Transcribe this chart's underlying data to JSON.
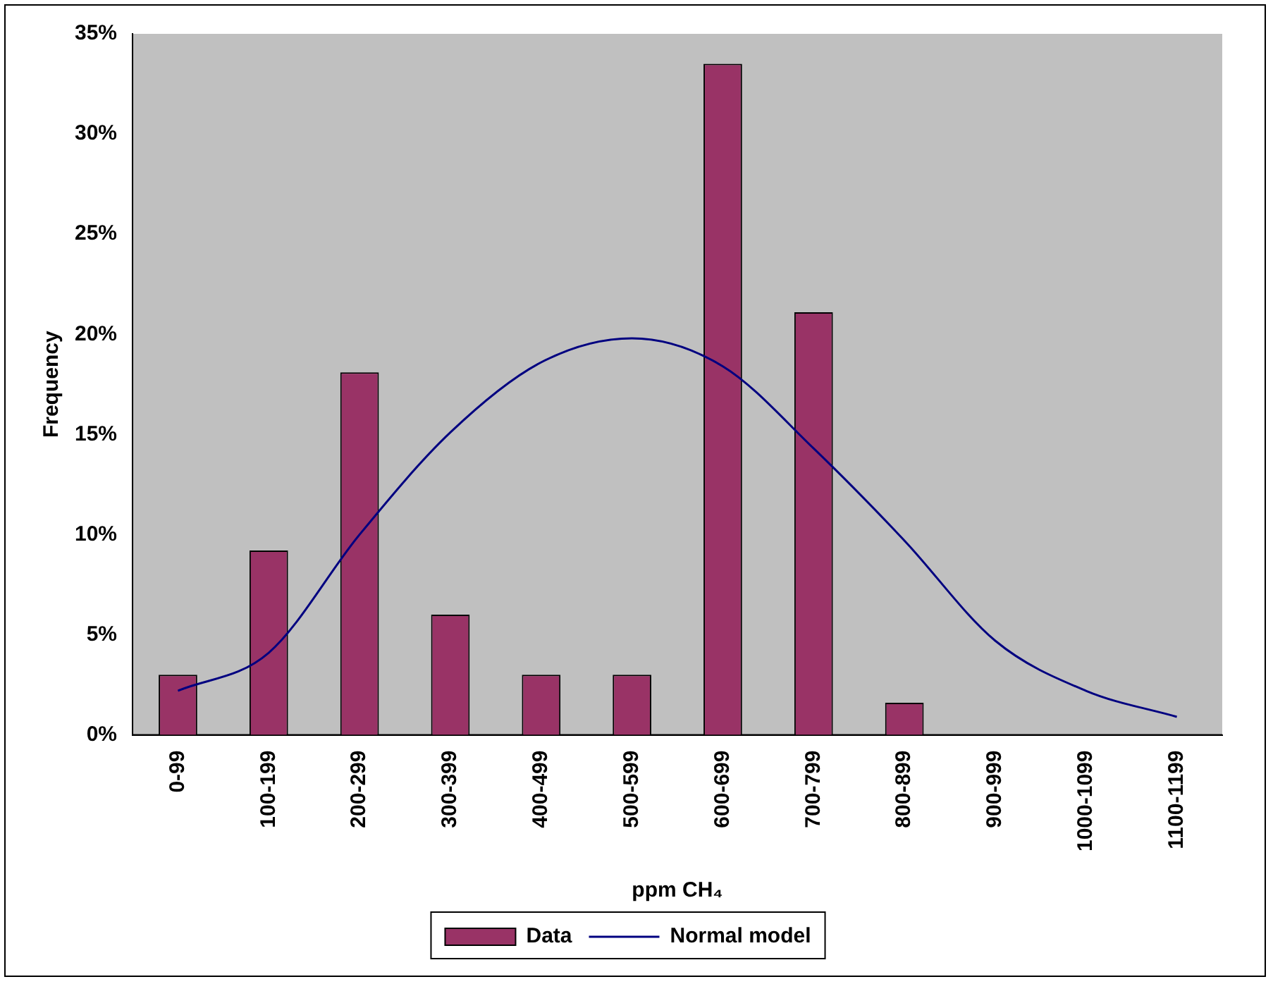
{
  "chart_data": {
    "type": "bar",
    "xlabel": "ppm CH₄",
    "ylabel": "Frequency",
    "categories": [
      "0-99",
      "100-199",
      "200-299",
      "300-399",
      "400-499",
      "500-599",
      "600-699",
      "700-799",
      "800-899",
      "900-999",
      "1000-1099",
      "1100-1199"
    ],
    "series": [
      {
        "name": "Data",
        "color": "#993366",
        "values": [
          3,
          9.2,
          18.1,
          6,
          3,
          3,
          33.5,
          21.1,
          1.6,
          0,
          0,
          0
        ]
      },
      {
        "name": "Normal model",
        "type": "line",
        "color": "#000080",
        "values": [
          2.2,
          4.1,
          10,
          15.1,
          18.6,
          19.8,
          18.4,
          14.3,
          9.7,
          4.7,
          2.2,
          0.9
        ]
      }
    ],
    "ylim": [
      0,
      35
    ],
    "yticks": [
      {
        "value": 0,
        "label": "0%"
      },
      {
        "value": 5,
        "label": "5%"
      },
      {
        "value": 10,
        "label": "10%"
      },
      {
        "value": 15,
        "label": "15%"
      },
      {
        "value": 20,
        "label": "20%"
      },
      {
        "value": 25,
        "label": "25%"
      },
      {
        "value": 30,
        "label": "30%"
      },
      {
        "value": 35,
        "label": "35%"
      }
    ],
    "grid": false,
    "legend": "bottom",
    "marker": "none"
  }
}
